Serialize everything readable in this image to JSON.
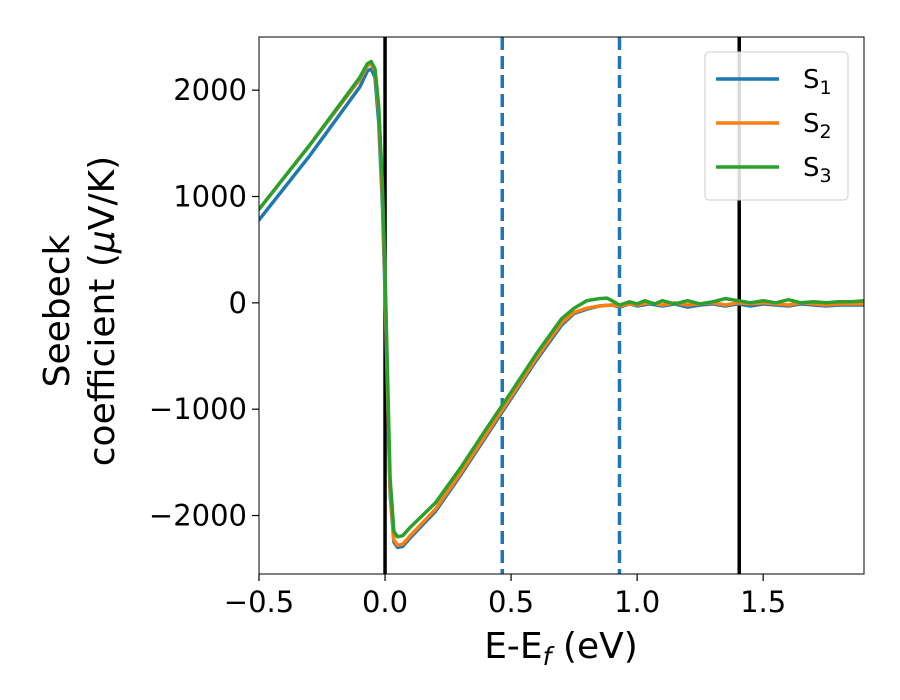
{
  "chart_data": {
    "type": "line",
    "xlabel_parts": [
      {
        "text": "E-E",
        "style": "normal"
      },
      {
        "text": "f",
        "style": "sub-italic"
      },
      {
        "text": " (eV)",
        "style": "normal"
      }
    ],
    "ylabel_line1": "Seebeck",
    "ylabel_line2_parts": [
      {
        "text": "coefficient  (",
        "style": "normal"
      },
      {
        "text": "μ",
        "style": "italic"
      },
      {
        "text": "V/K)",
        "style": "normal"
      }
    ],
    "xlim": [
      -0.5,
      1.9
    ],
    "ylim": [
      -2550,
      2500
    ],
    "xticks": [
      -0.5,
      0.0,
      0.5,
      1.0,
      1.5
    ],
    "xtick_labels": [
      "−0.5",
      "0.0",
      "0.5",
      "1.0",
      "1.5"
    ],
    "yticks": [
      -2000,
      -1000,
      0,
      1000,
      2000
    ],
    "ytick_labels": [
      "−2000",
      "−1000",
      "0",
      "1000",
      "2000"
    ],
    "vlines": [
      {
        "x": 0.0,
        "style": "solid",
        "color": "#000000"
      },
      {
        "x": 1.405,
        "style": "solid",
        "color": "#000000"
      },
      {
        "x": 0.465,
        "style": "dashed",
        "color": "#1f77b4"
      },
      {
        "x": 0.93,
        "style": "dashed",
        "color": "#1f77b4"
      }
    ],
    "legend_position": "upper-right",
    "series": [
      {
        "name": "S",
        "sub": "1",
        "color": "#1f77b4",
        "points": [
          [
            -0.5,
            780
          ],
          [
            -0.3,
            1380
          ],
          [
            -0.1,
            2030
          ],
          [
            -0.07,
            2180
          ],
          [
            -0.055,
            2200
          ],
          [
            -0.04,
            2120
          ],
          [
            -0.025,
            1700
          ],
          [
            -0.01,
            900
          ],
          [
            0.0,
            100
          ],
          [
            0.01,
            -900
          ],
          [
            0.02,
            -1800
          ],
          [
            0.035,
            -2250
          ],
          [
            0.05,
            -2300
          ],
          [
            0.07,
            -2290
          ],
          [
            0.1,
            -2210
          ],
          [
            0.2,
            -1960
          ],
          [
            0.3,
            -1620
          ],
          [
            0.4,
            -1260
          ],
          [
            0.5,
            -900
          ],
          [
            0.6,
            -540
          ],
          [
            0.7,
            -210
          ],
          [
            0.75,
            -100
          ],
          [
            0.8,
            -60
          ],
          [
            0.85,
            -30
          ],
          [
            0.9,
            -20
          ],
          [
            0.93,
            -40
          ],
          [
            0.97,
            -10
          ],
          [
            1.0,
            -30
          ],
          [
            1.05,
            -10
          ],
          [
            1.1,
            -30
          ],
          [
            1.15,
            -10
          ],
          [
            1.2,
            -40
          ],
          [
            1.25,
            -20
          ],
          [
            1.3,
            -10
          ],
          [
            1.35,
            -30
          ],
          [
            1.4,
            -10
          ],
          [
            1.45,
            -30
          ],
          [
            1.5,
            -10
          ],
          [
            1.55,
            -20
          ],
          [
            1.6,
            -30
          ],
          [
            1.65,
            -10
          ],
          [
            1.7,
            -20
          ],
          [
            1.75,
            -30
          ],
          [
            1.8,
            -20
          ],
          [
            1.85,
            -20
          ],
          [
            1.9,
            -20
          ]
        ]
      },
      {
        "name": "S",
        "sub": "2",
        "color": "#ff7f0e",
        "points": [
          [
            -0.5,
            880
          ],
          [
            -0.3,
            1480
          ],
          [
            -0.1,
            2100
          ],
          [
            -0.07,
            2230
          ],
          [
            -0.055,
            2250
          ],
          [
            -0.04,
            2180
          ],
          [
            -0.025,
            1800
          ],
          [
            -0.01,
            1000
          ],
          [
            0.0,
            200
          ],
          [
            0.01,
            -800
          ],
          [
            0.02,
            -1750
          ],
          [
            0.035,
            -2230
          ],
          [
            0.05,
            -2280
          ],
          [
            0.07,
            -2270
          ],
          [
            0.1,
            -2190
          ],
          [
            0.2,
            -1940
          ],
          [
            0.3,
            -1600
          ],
          [
            0.4,
            -1240
          ],
          [
            0.5,
            -880
          ],
          [
            0.6,
            -520
          ],
          [
            0.7,
            -190
          ],
          [
            0.75,
            -90
          ],
          [
            0.8,
            -50
          ],
          [
            0.85,
            -30
          ],
          [
            0.9,
            -20
          ],
          [
            0.93,
            -30
          ],
          [
            0.97,
            -10
          ],
          [
            1.0,
            -20
          ],
          [
            1.05,
            0
          ],
          [
            1.1,
            -20
          ],
          [
            1.15,
            0
          ],
          [
            1.2,
            -20
          ],
          [
            1.25,
            -10
          ],
          [
            1.3,
            0
          ],
          [
            1.35,
            -20
          ],
          [
            1.4,
            0
          ],
          [
            1.45,
            -10
          ],
          [
            1.5,
            0
          ],
          [
            1.55,
            -10
          ],
          [
            1.6,
            -20
          ],
          [
            1.65,
            0
          ],
          [
            1.7,
            -10
          ],
          [
            1.75,
            -20
          ],
          [
            1.8,
            -10
          ],
          [
            1.85,
            -10
          ],
          [
            1.9,
            -10
          ]
        ]
      },
      {
        "name": "S",
        "sub": "3",
        "color": "#2ca02c",
        "points": [
          [
            -0.5,
            880
          ],
          [
            -0.3,
            1480
          ],
          [
            -0.1,
            2120
          ],
          [
            -0.07,
            2250
          ],
          [
            -0.055,
            2270
          ],
          [
            -0.04,
            2200
          ],
          [
            -0.025,
            1850
          ],
          [
            -0.01,
            1100
          ],
          [
            0.0,
            300
          ],
          [
            0.01,
            -700
          ],
          [
            0.02,
            -1650
          ],
          [
            0.035,
            -2150
          ],
          [
            0.05,
            -2200
          ],
          [
            0.07,
            -2190
          ],
          [
            0.1,
            -2110
          ],
          [
            0.2,
            -1880
          ],
          [
            0.3,
            -1550
          ],
          [
            0.4,
            -1190
          ],
          [
            0.5,
            -840
          ],
          [
            0.6,
            -480
          ],
          [
            0.7,
            -150
          ],
          [
            0.75,
            -50
          ],
          [
            0.8,
            20
          ],
          [
            0.85,
            40
          ],
          [
            0.88,
            45
          ],
          [
            0.9,
            20
          ],
          [
            0.93,
            -20
          ],
          [
            0.97,
            10
          ],
          [
            1.0,
            -10
          ],
          [
            1.03,
            20
          ],
          [
            1.07,
            -10
          ],
          [
            1.1,
            20
          ],
          [
            1.15,
            -10
          ],
          [
            1.2,
            20
          ],
          [
            1.25,
            -10
          ],
          [
            1.3,
            10
          ],
          [
            1.35,
            40
          ],
          [
            1.4,
            20
          ],
          [
            1.45,
            0
          ],
          [
            1.5,
            20
          ],
          [
            1.55,
            0
          ],
          [
            1.6,
            30
          ],
          [
            1.65,
            0
          ],
          [
            1.7,
            10
          ],
          [
            1.75,
            0
          ],
          [
            1.8,
            10
          ],
          [
            1.85,
            10
          ],
          [
            1.9,
            20
          ]
        ]
      }
    ]
  }
}
